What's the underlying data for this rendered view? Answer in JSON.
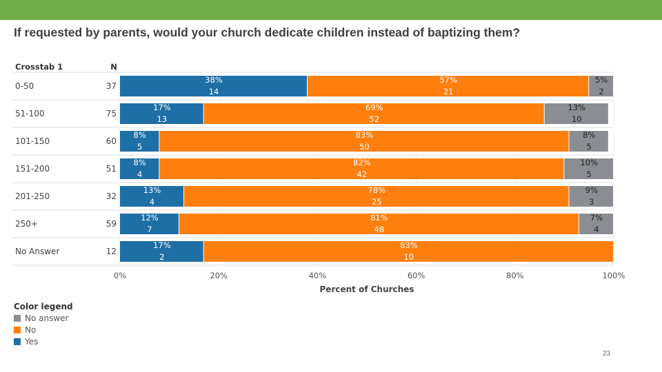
{
  "slide": {
    "title": "If requested by parents, would your church dedicate children instead of baptizing them?",
    "page_number": "23",
    "accent_color": "#70ad47"
  },
  "legend": {
    "title": "Color legend",
    "items": [
      {
        "label": "No answer",
        "color": "#8a8d91"
      },
      {
        "label": "No",
        "color": "#ff7f0e"
      },
      {
        "label": "Yes",
        "color": "#1f6fa7"
      }
    ]
  },
  "chart_data": {
    "type": "bar",
    "orientation": "horizontal",
    "stacked": true,
    "row_header": "Crosstab 1",
    "n_header": "N",
    "xlabel": "Percent of Churches",
    "xlim": [
      0,
      100
    ],
    "xticks": [
      "0%",
      "20%",
      "40%",
      "60%",
      "80%",
      "100%"
    ],
    "categories": [
      "0-50",
      "51-100",
      "101-150",
      "151-200",
      "201-250",
      "250+",
      "No Answer"
    ],
    "n": [
      37,
      75,
      60,
      51,
      32,
      59,
      12
    ],
    "series": [
      {
        "name": "Yes",
        "color": "#1f6fa7",
        "values": [
          38,
          17,
          8,
          8,
          13,
          12,
          17
        ],
        "labels": [
          "38%",
          "17%",
          "8%",
          "8%",
          "13%",
          "12%",
          "17%"
        ],
        "counts": [
          "14",
          "13",
          "5",
          "4",
          "4",
          "7",
          "2"
        ]
      },
      {
        "name": "No",
        "color": "#ff7f0e",
        "values": [
          57,
          69,
          83,
          82,
          78,
          81,
          83
        ],
        "labels": [
          "57%",
          "69%",
          "83%",
          "82%",
          "78%",
          "81%",
          "83%"
        ],
        "counts": [
          "21",
          "52",
          "50",
          "42",
          "25",
          "48",
          "10"
        ]
      },
      {
        "name": "No answer",
        "color": "#8a8d91",
        "values": [
          5,
          13,
          8,
          10,
          9,
          7,
          0
        ],
        "labels": [
          "5%",
          "13%",
          "8%",
          "10%",
          "9%",
          "7%",
          ""
        ],
        "counts": [
          "2",
          "10",
          "5",
          "5",
          "3",
          "4",
          ""
        ]
      }
    ]
  }
}
